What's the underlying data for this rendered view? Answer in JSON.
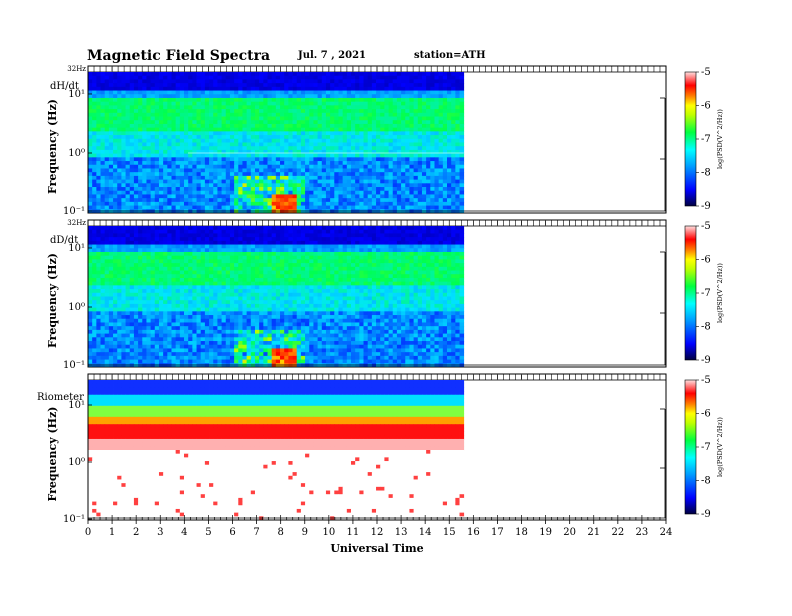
{
  "header": {
    "title": "Magnetic  Field  Spectra",
    "date": "Jul.  7  , 2021",
    "station": "station=ATH"
  },
  "colors": {
    "gradient": [
      "#00007f",
      "#0000ff",
      "#0080ff",
      "#00ffff",
      "#00ff00",
      "#ffff00",
      "#ff8000",
      "#ff0000",
      "#ffffff"
    ]
  },
  "chart_data": {
    "type": "heatmap",
    "xlabel": "Universal Time",
    "x_ticks": [
      "0",
      "1",
      "2",
      "3",
      "4",
      "5",
      "6",
      "7",
      "8",
      "9",
      "10",
      "11",
      "12",
      "13",
      "14",
      "15",
      "16",
      "17",
      "18",
      "19",
      "20",
      "21",
      "22",
      "23",
      "24"
    ],
    "xlim": [
      0,
      24
    ],
    "data_end_ut": 15.6,
    "y_scale": "log",
    "colorbar": {
      "label": "log(PSD(V^2/Hz))",
      "ticks": [
        "-5",
        "-6",
        "-7",
        "-8",
        "-9"
      ],
      "range": [
        -9,
        -5
      ]
    },
    "panels": [
      {
        "name": "dH/dt",
        "ylabel": "Frequency  (Hz)",
        "top_label": "32Hz",
        "y_ticks": [
          "10¹",
          "10⁰",
          "10⁻¹"
        ]
      },
      {
        "name": "dD/dt",
        "ylabel": "Frequency  (Hz)",
        "top_label": "32Hz",
        "y_ticks": [
          "10¹",
          "10⁰",
          "10⁻¹"
        ]
      },
      {
        "name": "Riometer",
        "ylabel": "Frequency  (Hz)",
        "top_label": "",
        "y_ticks": [
          "10¹",
          "10⁰",
          "10⁻¹"
        ]
      }
    ]
  }
}
